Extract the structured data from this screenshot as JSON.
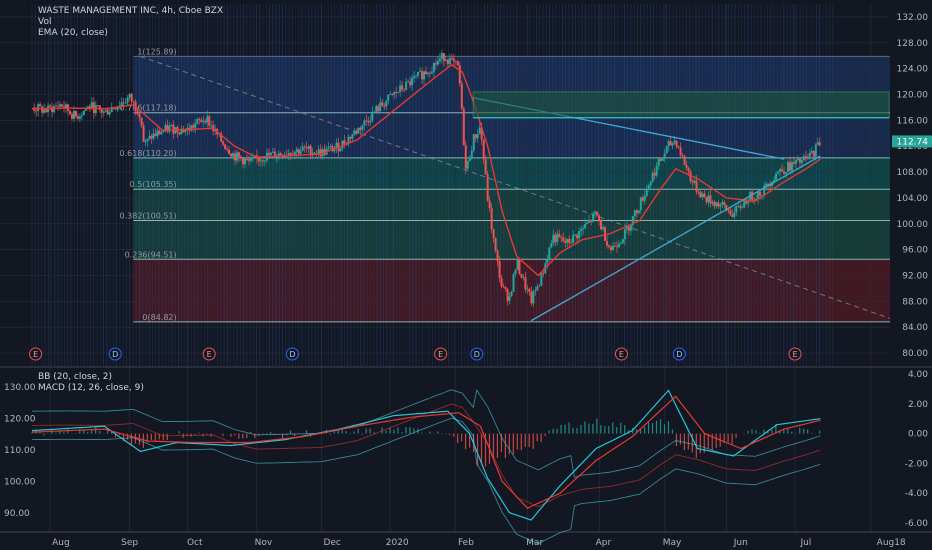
{
  "legend_top": {
    "symbol": "WASTE MANAGEMENT INC, 4h, Cboe BZX",
    "vol": "Vol",
    "ema": "EMA (20, close)"
  },
  "legend_bottom": {
    "bb": "BB (20, close, 2)",
    "macd": "MACD (12, 26, close, 9)"
  },
  "colors": {
    "background": "#131722",
    "candle": "#26a69a",
    "candle_down": "#ef5350",
    "ema": "#e53935",
    "trendline": "#3fa9d6",
    "fib_red": "#4a1a22",
    "fib_green": "#17433b",
    "fib_teal": "#0f4a4a",
    "fib_blue": "#1b2f55",
    "volume_stripe": "#2a55a8",
    "macd_line": "#26c6da",
    "signal_line": "#e53935",
    "bb_band": "#4dd0e1"
  },
  "chart_data": [
    {
      "type": "candlestick",
      "title": "WASTE MANAGEMENT INC, 4h, Cboe BZX",
      "x_tick_labels": [
        "Aug",
        "Sep",
        "Oct",
        "Nov",
        "Dec",
        "2020",
        "Feb",
        "Mar",
        "Apr",
        "May",
        "Jun",
        "Jul",
        "Aug",
        "18"
      ],
      "y_tick_labels": [
        "132.00",
        "128.00",
        "124.00",
        "120.00",
        "116.00",
        "112.00",
        "108.00",
        "104.00",
        "100.00",
        "96.00",
        "92.00",
        "88.00",
        "84.00",
        "80.00"
      ],
      "ylim": [
        78,
        134
      ],
      "last_price": "112.74",
      "fib_levels": [
        {
          "label": "1(125.89)",
          "value": 125.89
        },
        {
          "label": "0.786(117.18)",
          "value": 117.18
        },
        {
          "label": "0.618(110.20)",
          "value": 110.2
        },
        {
          "label": "0.5(105.35)",
          "value": 105.35
        },
        {
          "label": "0.382(100.51)",
          "value": 100.51
        },
        {
          "label": "0.236(94.51)",
          "value": 94.51
        },
        {
          "label": "0(84.82)",
          "value": 84.82
        }
      ],
      "price_path": [
        {
          "t": 0,
          "v": 118.0
        },
        {
          "t": 4,
          "v": 117.5
        },
        {
          "t": 8,
          "v": 118.5
        },
        {
          "t": 12,
          "v": 116.5
        },
        {
          "t": 16,
          "v": 118.2
        },
        {
          "t": 20,
          "v": 117.2
        },
        {
          "t": 24,
          "v": 118.5
        },
        {
          "t": 27,
          "v": 119.5
        },
        {
          "t": 30,
          "v": 117.0
        },
        {
          "t": 31,
          "v": 112.0
        },
        {
          "t": 33,
          "v": 113.5
        },
        {
          "t": 38,
          "v": 114.8
        },
        {
          "t": 43,
          "v": 114.5
        },
        {
          "t": 48,
          "v": 116.5
        },
        {
          "t": 52,
          "v": 113.0
        },
        {
          "t": 56,
          "v": 110.5
        },
        {
          "t": 60,
          "v": 109.5
        },
        {
          "t": 65,
          "v": 110.5
        },
        {
          "t": 70,
          "v": 111.0
        },
        {
          "t": 75,
          "v": 111.5
        },
        {
          "t": 80,
          "v": 111.0
        },
        {
          "t": 85,
          "v": 112.0
        },
        {
          "t": 90,
          "v": 114.5
        },
        {
          "t": 95,
          "v": 117.5
        },
        {
          "t": 100,
          "v": 120.0
        },
        {
          "t": 105,
          "v": 122.0
        },
        {
          "t": 110,
          "v": 124.0
        },
        {
          "t": 114,
          "v": 126.0
        },
        {
          "t": 116,
          "v": 125.0
        },
        {
          "t": 118,
          "v": 124.0
        },
        {
          "t": 119,
          "v": 116.0
        },
        {
          "t": 120,
          "v": 108.0
        },
        {
          "t": 122,
          "v": 113.0
        },
        {
          "t": 124,
          "v": 115.0
        },
        {
          "t": 126,
          "v": 104.0
        },
        {
          "t": 128,
          "v": 96.0
        },
        {
          "t": 130,
          "v": 90.0
        },
        {
          "t": 132,
          "v": 88.5
        },
        {
          "t": 134,
          "v": 94.0
        },
        {
          "t": 136,
          "v": 91.0
        },
        {
          "t": 138,
          "v": 88.0
        },
        {
          "t": 141,
          "v": 92.0
        },
        {
          "t": 144,
          "v": 98.0
        },
        {
          "t": 148,
          "v": 97.0
        },
        {
          "t": 152,
          "v": 99.0
        },
        {
          "t": 156,
          "v": 101.5
        },
        {
          "t": 160,
          "v": 96.0
        },
        {
          "t": 164,
          "v": 98.5
        },
        {
          "t": 168,
          "v": 103.0
        },
        {
          "t": 172,
          "v": 108.0
        },
        {
          "t": 176,
          "v": 112.0
        },
        {
          "t": 178,
          "v": 113.0
        },
        {
          "t": 180,
          "v": 110.0
        },
        {
          "t": 183,
          "v": 106.0
        },
        {
          "t": 186,
          "v": 104.0
        },
        {
          "t": 190,
          "v": 103.0
        },
        {
          "t": 194,
          "v": 101.5
        },
        {
          "t": 198,
          "v": 104.0
        },
        {
          "t": 202,
          "v": 105.0
        },
        {
          "t": 206,
          "v": 108.0
        },
        {
          "t": 210,
          "v": 109.0
        },
        {
          "t": 214,
          "v": 110.0
        },
        {
          "t": 216,
          "v": 111.0
        },
        {
          "t": 218,
          "v": 112.74
        }
      ],
      "ema_path": [
        {
          "t": 0,
          "v": 117.8
        },
        {
          "t": 10,
          "v": 117.9
        },
        {
          "t": 20,
          "v": 117.8
        },
        {
          "t": 28,
          "v": 118.4
        },
        {
          "t": 32,
          "v": 116.5
        },
        {
          "t": 36,
          "v": 114.5
        },
        {
          "t": 44,
          "v": 114.6
        },
        {
          "t": 50,
          "v": 114.8
        },
        {
          "t": 56,
          "v": 112.0
        },
        {
          "t": 62,
          "v": 110.3
        },
        {
          "t": 70,
          "v": 110.5
        },
        {
          "t": 80,
          "v": 110.8
        },
        {
          "t": 90,
          "v": 113.0
        },
        {
          "t": 100,
          "v": 117.5
        },
        {
          "t": 110,
          "v": 122.0
        },
        {
          "t": 116,
          "v": 124.6
        },
        {
          "t": 119,
          "v": 123.5
        },
        {
          "t": 122,
          "v": 119.0
        },
        {
          "t": 126,
          "v": 112.0
        },
        {
          "t": 130,
          "v": 102.0
        },
        {
          "t": 134,
          "v": 95.0
        },
        {
          "t": 140,
          "v": 92.0
        },
        {
          "t": 146,
          "v": 95.5
        },
        {
          "t": 152,
          "v": 97.5
        },
        {
          "t": 160,
          "v": 98.5
        },
        {
          "t": 168,
          "v": 100.5
        },
        {
          "t": 174,
          "v": 105.5
        },
        {
          "t": 178,
          "v": 108.5
        },
        {
          "t": 184,
          "v": 107.0
        },
        {
          "t": 192,
          "v": 104.0
        },
        {
          "t": 200,
          "v": 103.5
        },
        {
          "t": 208,
          "v": 106.5
        },
        {
          "t": 214,
          "v": 108.5
        },
        {
          "t": 218,
          "v": 110.0
        }
      ],
      "trendlines": [
        {
          "from": {
            "t": 122,
            "v": 119.5
          },
          "to": {
            "t": 208,
            "v": 110.0
          }
        },
        {
          "from": {
            "t": 138,
            "v": 85.0
          },
          "to": {
            "t": 218,
            "v": 110.5
          }
        }
      ],
      "event_markers": [
        {
          "label": "E",
          "t": 1
        },
        {
          "label": "D",
          "t": 23
        },
        {
          "label": "E",
          "t": 49
        },
        {
          "label": "D",
          "t": 72
        },
        {
          "label": "E",
          "t": 113
        },
        {
          "label": "D",
          "t": 123
        },
        {
          "label": "E",
          "t": 163
        },
        {
          "label": "D",
          "t": 179
        },
        {
          "label": "E",
          "t": 211
        }
      ]
    },
    {
      "type": "line",
      "title": "BB (20, close, 2) / MACD (12, 26, close, 9)",
      "y_tick_labels_left": [
        "130.00",
        "120.00",
        "110.00",
        "100.00",
        "90.00"
      ],
      "y_tick_labels_right": [
        "4.00",
        "2.00",
        "0.00",
        "-2.00",
        "-4.00",
        "-6.00"
      ],
      "ylim_right": [
        -6.6,
        4.4
      ],
      "macd": [
        {
          "t": 0,
          "v": 0.2
        },
        {
          "t": 20,
          "v": 0.5
        },
        {
          "t": 30,
          "v": -1.2
        },
        {
          "t": 40,
          "v": -0.6
        },
        {
          "t": 55,
          "v": -0.8
        },
        {
          "t": 70,
          "v": -0.4
        },
        {
          "t": 85,
          "v": 0.3
        },
        {
          "t": 100,
          "v": 1.2
        },
        {
          "t": 115,
          "v": 1.5
        },
        {
          "t": 121,
          "v": 0.0
        },
        {
          "t": 126,
          "v": -3.0
        },
        {
          "t": 132,
          "v": -5.3
        },
        {
          "t": 138,
          "v": -5.8
        },
        {
          "t": 146,
          "v": -3.5
        },
        {
          "t": 156,
          "v": -1.0
        },
        {
          "t": 166,
          "v": 0.2
        },
        {
          "t": 176,
          "v": 2.9
        },
        {
          "t": 184,
          "v": -1.0
        },
        {
          "t": 194,
          "v": -1.5
        },
        {
          "t": 206,
          "v": 0.6
        },
        {
          "t": 218,
          "v": 1.0
        }
      ],
      "signal": [
        {
          "t": 0,
          "v": 0.1
        },
        {
          "t": 20,
          "v": 0.3
        },
        {
          "t": 32,
          "v": -0.5
        },
        {
          "t": 45,
          "v": -0.6
        },
        {
          "t": 60,
          "v": -0.6
        },
        {
          "t": 75,
          "v": -0.2
        },
        {
          "t": 90,
          "v": 0.5
        },
        {
          "t": 105,
          "v": 1.1
        },
        {
          "t": 118,
          "v": 1.4
        },
        {
          "t": 124,
          "v": 0.5
        },
        {
          "t": 130,
          "v": -3.2
        },
        {
          "t": 137,
          "v": -5.0
        },
        {
          "t": 146,
          "v": -4.0
        },
        {
          "t": 156,
          "v": -1.8
        },
        {
          "t": 166,
          "v": -0.2
        },
        {
          "t": 178,
          "v": 2.5
        },
        {
          "t": 186,
          "v": 0.0
        },
        {
          "t": 196,
          "v": -1.0
        },
        {
          "t": 208,
          "v": 0.3
        },
        {
          "t": 218,
          "v": 0.9
        }
      ]
    }
  ]
}
